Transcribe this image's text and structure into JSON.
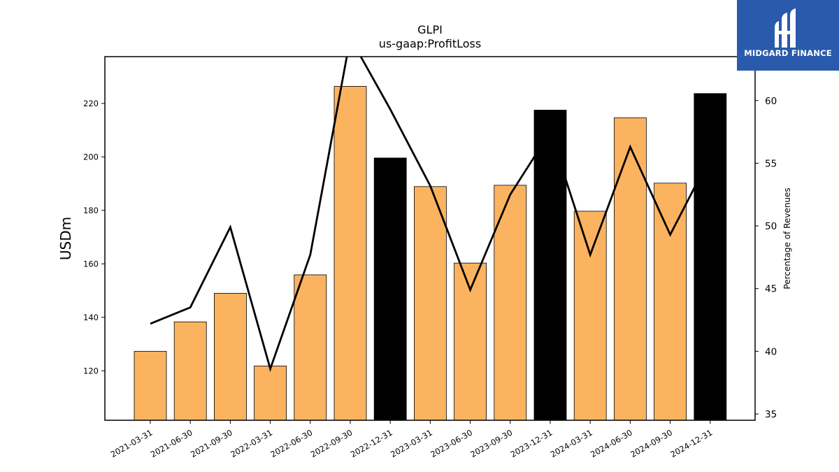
{
  "brand": {
    "name": "MIDGARD FINANCE",
    "icon": "midgard-m-logo-icon"
  },
  "chart_data": {
    "type": "bar",
    "title": "GLPI",
    "subtitle": "us-gaap:ProfitLoss",
    "ylabel": "USDm",
    "y2label": "Percentage of Revenues",
    "categories": [
      "2021-03-31",
      "2021-06-30",
      "2021-09-30",
      "2022-03-31",
      "2022-06-30",
      "2022-09-30",
      "2022-12-31",
      "2023-03-31",
      "2023-06-30",
      "2023-09-30",
      "2023-12-31",
      "2024-03-31",
      "2024-06-30",
      "2024-09-30",
      "2024-12-31"
    ],
    "values": [
      127.3,
      138.3,
      149.0,
      121.8,
      155.9,
      226.4,
      199.6,
      188.9,
      160.3,
      189.4,
      217.5,
      179.7,
      214.6,
      190.2,
      223.7
    ],
    "annual": [
      false,
      false,
      false,
      false,
      false,
      false,
      true,
      false,
      false,
      false,
      true,
      false,
      false,
      false,
      true
    ],
    "colors": {
      "quarter": "#fbb360",
      "annual": "#000000",
      "line": "#000000"
    },
    "line_values": [
      42.2,
      43.5,
      49.9,
      38.6,
      47.7,
      65.0,
      59.3,
      53.2,
      44.9,
      52.5,
      57.5,
      47.7,
      56.3,
      49.3,
      55.5
    ],
    "ylim": [
      101.5,
      237.5
    ],
    "y2lim": [
      34.5,
      63.5
    ],
    "yticks": [
      "120",
      "140",
      "160",
      "180",
      "200",
      "220"
    ],
    "y2ticks": [
      "35",
      "40",
      "45",
      "50",
      "55",
      "60"
    ]
  }
}
